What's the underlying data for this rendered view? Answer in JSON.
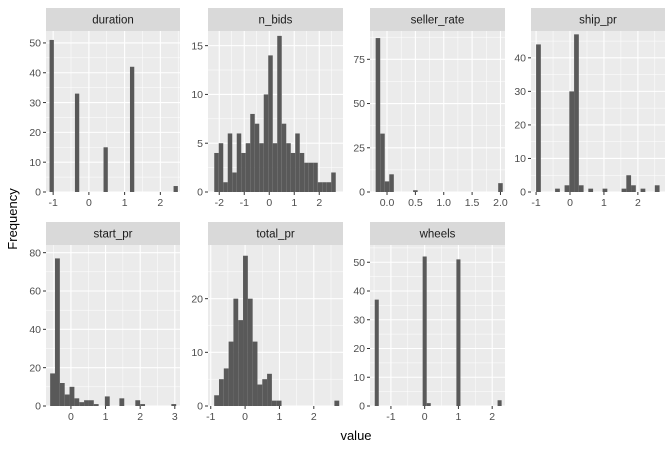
{
  "chart_data": {
    "type": "bar",
    "xlabel": "value",
    "ylabel": "Frequency",
    "colors": {
      "panel_bg": "#ebebeb",
      "strip_bg": "#d9d9d9",
      "grid": "#ffffff",
      "bar": "#595959",
      "tick_text": "#4d4d4d"
    },
    "panels": [
      {
        "name": "duration",
        "xlim": [
          -1.2,
          2.55
        ],
        "ylim": [
          0,
          54
        ],
        "xticks": [
          {
            "v": -1,
            "l": "-1"
          },
          {
            "v": 0,
            "l": "0"
          },
          {
            "v": 1,
            "l": "1"
          },
          {
            "v": 2,
            "l": "2"
          }
        ],
        "yticks": [
          {
            "v": 0,
            "l": "0"
          },
          {
            "v": 10,
            "l": "10"
          },
          {
            "v": 20,
            "l": "20"
          },
          {
            "v": 30,
            "l": "30"
          },
          {
            "v": 40,
            "l": "40"
          },
          {
            "v": 50,
            "l": "50"
          }
        ],
        "bins": [
          {
            "x0": -1.1,
            "x1": -0.98,
            "count": 51
          },
          {
            "x0": -0.39,
            "x1": -0.27,
            "count": 33
          },
          {
            "x0": 0.41,
            "x1": 0.53,
            "count": 15
          },
          {
            "x0": 1.15,
            "x1": 1.27,
            "count": 42
          },
          {
            "x0": 2.37,
            "x1": 2.49,
            "count": 2
          }
        ]
      },
      {
        "name": "n_bids",
        "xlim": [
          -2.45,
          2.95
        ],
        "ylim": [
          0,
          16.5
        ],
        "xticks": [
          {
            "v": -2,
            "l": "-2"
          },
          {
            "v": -1,
            "l": "-1"
          },
          {
            "v": 0,
            "l": "0"
          },
          {
            "v": 1,
            "l": "1"
          },
          {
            "v": 2,
            "l": "2"
          }
        ],
        "yticks": [
          {
            "v": 0,
            "l": "0"
          },
          {
            "v": 5,
            "l": "5"
          },
          {
            "v": 10,
            "l": "10"
          },
          {
            "v": 15,
            "l": "15"
          }
        ],
        "bins": [
          {
            "x0": -2.2,
            "x1": -2.02,
            "count": 4
          },
          {
            "x0": -2.02,
            "x1": -1.84,
            "count": 5
          },
          {
            "x0": -1.84,
            "x1": -1.66,
            "count": 1
          },
          {
            "x0": -1.66,
            "x1": -1.48,
            "count": 6
          },
          {
            "x0": -1.48,
            "x1": -1.3,
            "count": 2
          },
          {
            "x0": -1.3,
            "x1": -1.12,
            "count": 6
          },
          {
            "x0": -1.12,
            "x1": -0.94,
            "count": 4
          },
          {
            "x0": -0.94,
            "x1": -0.76,
            "count": 5
          },
          {
            "x0": -0.76,
            "x1": -0.58,
            "count": 8
          },
          {
            "x0": -0.58,
            "x1": -0.4,
            "count": 7
          },
          {
            "x0": -0.4,
            "x1": -0.22,
            "count": 5
          },
          {
            "x0": -0.22,
            "x1": -0.04,
            "count": 10
          },
          {
            "x0": -0.04,
            "x1": 0.14,
            "count": 14
          },
          {
            "x0": 0.14,
            "x1": 0.32,
            "count": 5
          },
          {
            "x0": 0.32,
            "x1": 0.5,
            "count": 16
          },
          {
            "x0": 0.5,
            "x1": 0.68,
            "count": 7
          },
          {
            "x0": 0.68,
            "x1": 0.86,
            "count": 5
          },
          {
            "x0": 0.86,
            "x1": 1.04,
            "count": 4
          },
          {
            "x0": 1.04,
            "x1": 1.22,
            "count": 6
          },
          {
            "x0": 1.22,
            "x1": 1.4,
            "count": 4
          },
          {
            "x0": 1.4,
            "x1": 1.58,
            "count": 3
          },
          {
            "x0": 1.58,
            "x1": 1.76,
            "count": 3
          },
          {
            "x0": 1.76,
            "x1": 1.94,
            "count": 3
          },
          {
            "x0": 1.94,
            "x1": 2.12,
            "count": 1
          },
          {
            "x0": 2.12,
            "x1": 2.3,
            "count": 1
          },
          {
            "x0": 2.3,
            "x1": 2.48,
            "count": 1
          },
          {
            "x0": 2.48,
            "x1": 2.66,
            "count": 2
          }
        ]
      },
      {
        "name": "seller_rate",
        "xlim": [
          -0.3,
          2.08
        ],
        "ylim": [
          0,
          91
        ],
        "xticks": [
          {
            "v": 0,
            "l": "0.0"
          },
          {
            "v": 0.5,
            "l": "0.5"
          },
          {
            "v": 1,
            "l": "1.0"
          },
          {
            "v": 1.5,
            "l": "1.5"
          },
          {
            "v": 2,
            "l": "2.0"
          }
        ],
        "yticks": [
          {
            "v": 0,
            "l": "0"
          },
          {
            "v": 25,
            "l": "25"
          },
          {
            "v": 50,
            "l": "50"
          },
          {
            "v": 75,
            "l": "75"
          }
        ],
        "bins": [
          {
            "x0": -0.2,
            "x1": -0.12,
            "count": 87
          },
          {
            "x0": -0.12,
            "x1": -0.04,
            "count": 33
          },
          {
            "x0": -0.04,
            "x1": 0.04,
            "count": 6
          },
          {
            "x0": 0.04,
            "x1": 0.12,
            "count": 10
          },
          {
            "x0": 0.46,
            "x1": 0.54,
            "count": 1
          },
          {
            "x0": 1.96,
            "x1": 2.04,
            "count": 5
          }
        ]
      },
      {
        "name": "ship_pr",
        "xlim": [
          -1.15,
          2.8
        ],
        "ylim": [
          0,
          48
        ],
        "xticks": [
          {
            "v": -1,
            "l": "-1"
          },
          {
            "v": 0,
            "l": "0"
          },
          {
            "v": 1,
            "l": "1"
          },
          {
            "v": 2,
            "l": "2"
          }
        ],
        "yticks": [
          {
            "v": 0,
            "l": "0"
          },
          {
            "v": 10,
            "l": "10"
          },
          {
            "v": 20,
            "l": "20"
          },
          {
            "v": 30,
            "l": "30"
          },
          {
            "v": 40,
            "l": "40"
          }
        ],
        "bins": [
          {
            "x0": -1.0,
            "x1": -0.86,
            "count": 44
          },
          {
            "x0": -0.44,
            "x1": -0.3,
            "count": 1
          },
          {
            "x0": -0.16,
            "x1": -0.02,
            "count": 2
          },
          {
            "x0": -0.02,
            "x1": 0.12,
            "count": 30
          },
          {
            "x0": 0.12,
            "x1": 0.26,
            "count": 47
          },
          {
            "x0": 0.26,
            "x1": 0.4,
            "count": 2
          },
          {
            "x0": 0.54,
            "x1": 0.68,
            "count": 1
          },
          {
            "x0": 0.96,
            "x1": 1.1,
            "count": 1
          },
          {
            "x0": 1.52,
            "x1": 1.66,
            "count": 1
          },
          {
            "x0": 1.66,
            "x1": 1.8,
            "count": 5
          },
          {
            "x0": 1.8,
            "x1": 1.94,
            "count": 2
          },
          {
            "x0": 2.08,
            "x1": 2.22,
            "count": 1
          },
          {
            "x0": 2.5,
            "x1": 2.64,
            "count": 2
          }
        ]
      },
      {
        "name": "start_pr",
        "xlim": [
          -0.72,
          3.15
        ],
        "ylim": [
          0,
          84
        ],
        "xticks": [
          {
            "v": 0,
            "l": "0"
          },
          {
            "v": 1,
            "l": "1"
          },
          {
            "v": 2,
            "l": "2"
          },
          {
            "v": 3,
            "l": "3"
          }
        ],
        "yticks": [
          {
            "v": 0,
            "l": "0"
          },
          {
            "v": 20,
            "l": "20"
          },
          {
            "v": 40,
            "l": "40"
          },
          {
            "v": 60,
            "l": "60"
          },
          {
            "v": 80,
            "l": "80"
          }
        ],
        "bins": [
          {
            "x0": -0.6,
            "x1": -0.46,
            "count": 17
          },
          {
            "x0": -0.46,
            "x1": -0.32,
            "count": 77
          },
          {
            "x0": -0.32,
            "x1": -0.18,
            "count": 12
          },
          {
            "x0": -0.18,
            "x1": -0.04,
            "count": 6
          },
          {
            "x0": -0.04,
            "x1": 0.1,
            "count": 10
          },
          {
            "x0": 0.1,
            "x1": 0.24,
            "count": 4
          },
          {
            "x0": 0.24,
            "x1": 0.38,
            "count": 2
          },
          {
            "x0": 0.38,
            "x1": 0.52,
            "count": 3
          },
          {
            "x0": 0.52,
            "x1": 0.66,
            "count": 3
          },
          {
            "x0": 0.66,
            "x1": 0.8,
            "count": 1
          },
          {
            "x0": 0.98,
            "x1": 1.12,
            "count": 5
          },
          {
            "x0": 1.4,
            "x1": 1.54,
            "count": 4
          },
          {
            "x0": 1.86,
            "x1": 2.0,
            "count": 3
          },
          {
            "x0": 2.0,
            "x1": 2.14,
            "count": 1
          },
          {
            "x0": 2.9,
            "x1": 3.04,
            "count": 1
          }
        ]
      },
      {
        "name": "total_pr",
        "xlim": [
          -1.08,
          2.85
        ],
        "ylim": [
          0,
          30
        ],
        "xticks": [
          {
            "v": -1,
            "l": "-1"
          },
          {
            "v": 0,
            "l": "0"
          },
          {
            "v": 1,
            "l": "1"
          },
          {
            "v": 2,
            "l": "2"
          }
        ],
        "yticks": [
          {
            "v": 0,
            "l": "0"
          },
          {
            "v": 10,
            "l": "10"
          },
          {
            "v": 20,
            "l": "20"
          }
        ],
        "bins": [
          {
            "x0": -0.9,
            "x1": -0.76,
            "count": 2
          },
          {
            "x0": -0.76,
            "x1": -0.62,
            "count": 5
          },
          {
            "x0": -0.62,
            "x1": -0.48,
            "count": 7
          },
          {
            "x0": -0.48,
            "x1": -0.34,
            "count": 12
          },
          {
            "x0": -0.34,
            "x1": -0.2,
            "count": 20
          },
          {
            "x0": -0.2,
            "x1": -0.06,
            "count": 16
          },
          {
            "x0": -0.06,
            "x1": 0.08,
            "count": 28
          },
          {
            "x0": 0.08,
            "x1": 0.22,
            "count": 20
          },
          {
            "x0": 0.22,
            "x1": 0.36,
            "count": 12
          },
          {
            "x0": 0.36,
            "x1": 0.5,
            "count": 4
          },
          {
            "x0": 0.5,
            "x1": 0.64,
            "count": 5
          },
          {
            "x0": 0.64,
            "x1": 0.78,
            "count": 6
          },
          {
            "x0": 0.78,
            "x1": 0.92,
            "count": 1
          },
          {
            "x0": 0.92,
            "x1": 1.06,
            "count": 1
          },
          {
            "x0": 2.6,
            "x1": 2.74,
            "count": 1
          }
        ]
      },
      {
        "name": "wheels",
        "xlim": [
          -1.62,
          2.38
        ],
        "ylim": [
          0,
          56
        ],
        "xticks": [
          {
            "v": -1,
            "l": "-1"
          },
          {
            "v": 0,
            "l": "0"
          },
          {
            "v": 1,
            "l": "1"
          },
          {
            "v": 2,
            "l": "2"
          }
        ],
        "yticks": [
          {
            "v": 0,
            "l": "0"
          },
          {
            "v": 10,
            "l": "10"
          },
          {
            "v": 20,
            "l": "20"
          },
          {
            "v": 30,
            "l": "30"
          },
          {
            "v": 40,
            "l": "40"
          },
          {
            "v": 50,
            "l": "50"
          }
        ],
        "bins": [
          {
            "x0": -1.48,
            "x1": -1.36,
            "count": 37
          },
          {
            "x0": -0.06,
            "x1": 0.06,
            "count": 52
          },
          {
            "x0": 0.06,
            "x1": 0.18,
            "count": 1
          },
          {
            "x0": 0.94,
            "x1": 1.06,
            "count": 51
          },
          {
            "x0": 2.16,
            "x1": 2.28,
            "count": 2
          }
        ]
      }
    ]
  }
}
